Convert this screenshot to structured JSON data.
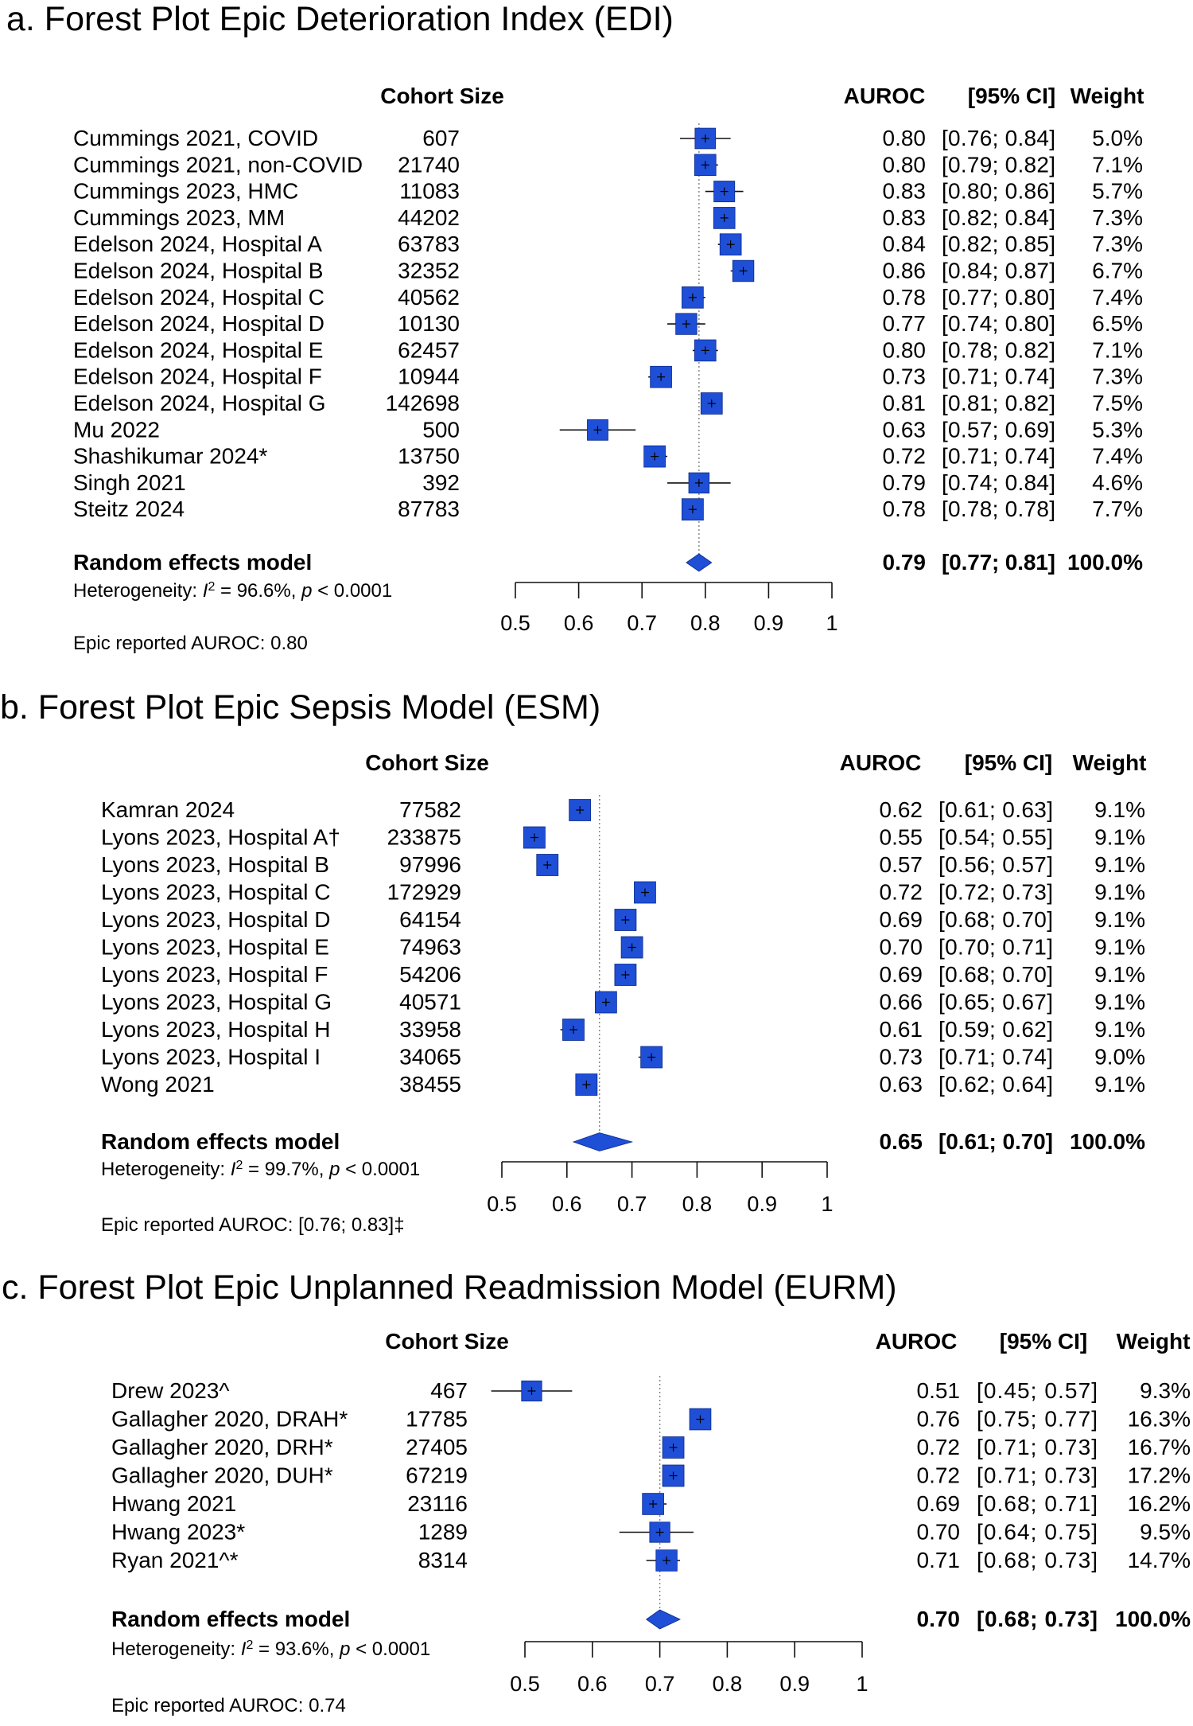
{
  "chart_data": [
    {
      "type": "forest",
      "title": "a.  Forest Plot Epic Deterioration Index (EDI)",
      "headers": {
        "cohort": "Cohort Size",
        "auroc": "AUROC",
        "ci": "[95% CI]",
        "weight": "Weight"
      },
      "xlim": [
        0.5,
        1
      ],
      "xticks": [
        "0.5",
        "0.6",
        "0.7",
        "0.8",
        "0.9",
        "1"
      ],
      "reference_line": 0.79,
      "studies": [
        {
          "study": "Cummings 2021, COVID",
          "n": "607",
          "auroc": "0.80",
          "ci": "[0.76; 0.84]",
          "weight": "5.0%",
          "est": 0.8,
          "lo": 0.76,
          "hi": 0.84,
          "w": 5.0
        },
        {
          "study": "Cummings 2021, non-COVID",
          "n": "21740",
          "auroc": "0.80",
          "ci": "[0.79; 0.82]",
          "weight": "7.1%",
          "est": 0.8,
          "lo": 0.79,
          "hi": 0.82,
          "w": 7.1
        },
        {
          "study": "Cummings 2023, HMC",
          "n": "11083",
          "auroc": "0.83",
          "ci": "[0.80; 0.86]",
          "weight": "5.7%",
          "est": 0.83,
          "lo": 0.8,
          "hi": 0.86,
          "w": 5.7
        },
        {
          "study": "Cummings 2023, MM",
          "n": "44202",
          "auroc": "0.83",
          "ci": "[0.82; 0.84]",
          "weight": "7.3%",
          "est": 0.83,
          "lo": 0.82,
          "hi": 0.84,
          "w": 7.3
        },
        {
          "study": "Edelson 2024, Hospital A",
          "n": "63783",
          "auroc": "0.84",
          "ci": "[0.82; 0.85]",
          "weight": "7.3%",
          "est": 0.84,
          "lo": 0.82,
          "hi": 0.85,
          "w": 7.3
        },
        {
          "study": "Edelson 2024, Hospital B",
          "n": "32352",
          "auroc": "0.86",
          "ci": "[0.84; 0.87]",
          "weight": "6.7%",
          "est": 0.86,
          "lo": 0.84,
          "hi": 0.87,
          "w": 6.7
        },
        {
          "study": "Edelson 2024, Hospital C",
          "n": "40562",
          "auroc": "0.78",
          "ci": "[0.77; 0.80]",
          "weight": "7.4%",
          "est": 0.78,
          "lo": 0.77,
          "hi": 0.8,
          "w": 7.4
        },
        {
          "study": "Edelson 2024, Hospital D",
          "n": "10130",
          "auroc": "0.77",
          "ci": "[0.74; 0.80]",
          "weight": "6.5%",
          "est": 0.77,
          "lo": 0.74,
          "hi": 0.8,
          "w": 6.5
        },
        {
          "study": "Edelson 2024, Hospital E",
          "n": "62457",
          "auroc": "0.80",
          "ci": "[0.78; 0.82]",
          "weight": "7.1%",
          "est": 0.8,
          "lo": 0.78,
          "hi": 0.82,
          "w": 7.1
        },
        {
          "study": "Edelson 2024, Hospital F",
          "n": "10944",
          "auroc": "0.73",
          "ci": "[0.71; 0.74]",
          "weight": "7.3%",
          "est": 0.73,
          "lo": 0.71,
          "hi": 0.74,
          "w": 7.3
        },
        {
          "study": "Edelson 2024, Hospital G",
          "n": "142698",
          "auroc": "0.81",
          "ci": "[0.81; 0.82]",
          "weight": "7.5%",
          "est": 0.81,
          "lo": 0.81,
          "hi": 0.82,
          "w": 7.5
        },
        {
          "study": "Mu 2022",
          "n": "500",
          "auroc": "0.63",
          "ci": "[0.57; 0.69]",
          "weight": "5.3%",
          "est": 0.63,
          "lo": 0.57,
          "hi": 0.69,
          "w": 5.3
        },
        {
          "study": "Shashikumar 2024*",
          "n": "13750",
          "auroc": "0.72",
          "ci": "[0.71; 0.74]",
          "weight": "7.4%",
          "est": 0.72,
          "lo": 0.71,
          "hi": 0.74,
          "w": 7.4
        },
        {
          "study": "Singh 2021",
          "n": "392",
          "auroc": "0.79",
          "ci": "[0.74; 0.84]",
          "weight": "4.6%",
          "est": 0.79,
          "lo": 0.74,
          "hi": 0.84,
          "w": 4.6
        },
        {
          "study": "Steitz 2024",
          "n": "87783",
          "auroc": "0.78",
          "ci": "[0.78; 0.78]",
          "weight": "7.7%",
          "est": 0.78,
          "lo": 0.78,
          "hi": 0.78,
          "w": 7.7
        }
      ],
      "summary": {
        "label": "Random effects model",
        "auroc": "0.79",
        "ci": "[0.77; 0.81]",
        "weight": "100.0%",
        "est": 0.79,
        "lo": 0.77,
        "hi": 0.81
      },
      "heterogeneity": {
        "prefix": "Heterogeneity: ",
        "i": "I",
        "sup": "2",
        "mid": " = 96.6%, ",
        "p": "p",
        "tail": " < 0.0001"
      },
      "note": "Epic reported AUROC: 0.80"
    },
    {
      "type": "forest",
      "title": "b.  Forest Plot Epic Sepsis Model (ESM)",
      "headers": {
        "cohort": "Cohort Size",
        "auroc": "AUROC",
        "ci": "[95% CI]",
        "weight": "Weight"
      },
      "xlim": [
        0.5,
        1
      ],
      "xticks": [
        "0.5",
        "0.6",
        "0.7",
        "0.8",
        "0.9",
        "1"
      ],
      "reference_line": 0.65,
      "studies": [
        {
          "study": "Kamran 2024",
          "n": "77582",
          "auroc": "0.62",
          "ci": "[0.61; 0.63]",
          "weight": "9.1%",
          "est": 0.62,
          "lo": 0.61,
          "hi": 0.63,
          "w": 9.1
        },
        {
          "study": "Lyons 2023, Hospital A†",
          "n": "233875",
          "auroc": "0.55",
          "ci": "[0.54; 0.55]",
          "weight": "9.1%",
          "est": 0.55,
          "lo": 0.54,
          "hi": 0.55,
          "w": 9.1
        },
        {
          "study": "Lyons 2023, Hospital B",
          "n": "97996",
          "auroc": "0.57",
          "ci": "[0.56; 0.57]",
          "weight": "9.1%",
          "est": 0.57,
          "lo": 0.56,
          "hi": 0.57,
          "w": 9.1
        },
        {
          "study": "Lyons 2023, Hospital C",
          "n": "172929",
          "auroc": "0.72",
          "ci": "[0.72; 0.73]",
          "weight": "9.1%",
          "est": 0.72,
          "lo": 0.72,
          "hi": 0.73,
          "w": 9.1
        },
        {
          "study": "Lyons 2023, Hospital D",
          "n": "64154",
          "auroc": "0.69",
          "ci": "[0.68; 0.70]",
          "weight": "9.1%",
          "est": 0.69,
          "lo": 0.68,
          "hi": 0.7,
          "w": 9.1
        },
        {
          "study": "Lyons 2023, Hospital E",
          "n": "74963",
          "auroc": "0.70",
          "ci": "[0.70; 0.71]",
          "weight": "9.1%",
          "est": 0.7,
          "lo": 0.7,
          "hi": 0.71,
          "w": 9.1
        },
        {
          "study": "Lyons 2023, Hospital F",
          "n": "54206",
          "auroc": "0.69",
          "ci": "[0.68; 0.70]",
          "weight": "9.1%",
          "est": 0.69,
          "lo": 0.68,
          "hi": 0.7,
          "w": 9.1
        },
        {
          "study": "Lyons 2023, Hospital G",
          "n": "40571",
          "auroc": "0.66",
          "ci": "[0.65; 0.67]",
          "weight": "9.1%",
          "est": 0.66,
          "lo": 0.65,
          "hi": 0.67,
          "w": 9.1
        },
        {
          "study": "Lyons 2023, Hospital H",
          "n": "33958",
          "auroc": "0.61",
          "ci": "[0.59; 0.62]",
          "weight": "9.1%",
          "est": 0.61,
          "lo": 0.59,
          "hi": 0.62,
          "w": 9.1
        },
        {
          "study": "Lyons 2023, Hospital I",
          "n": "34065",
          "auroc": "0.73",
          "ci": "[0.71; 0.74]",
          "weight": "9.0%",
          "est": 0.73,
          "lo": 0.71,
          "hi": 0.74,
          "w": 9.0
        },
        {
          "study": "Wong 2021",
          "n": "38455",
          "auroc": "0.63",
          "ci": "[0.62; 0.64]",
          "weight": "9.1%",
          "est": 0.63,
          "lo": 0.62,
          "hi": 0.64,
          "w": 9.1
        }
      ],
      "summary": {
        "label": "Random effects model",
        "auroc": "0.65",
        "ci": "[0.61; 0.70]",
        "weight": "100.0%",
        "est": 0.65,
        "lo": 0.61,
        "hi": 0.7
      },
      "heterogeneity": {
        "prefix": "Heterogeneity: ",
        "i": "I",
        "sup": "2",
        "mid": " = 99.7%, ",
        "p": "p",
        "tail": " < 0.0001"
      },
      "note": "Epic reported AUROC: [0.76; 0.83]‡"
    },
    {
      "type": "forest",
      "title": "c.  Forest Plot Epic Unplanned Readmission Model (EURM)",
      "headers": {
        "cohort": "Cohort Size",
        "auroc": "AUROC",
        "ci": "[95% CI]",
        "weight": "Weight"
      },
      "xlim": [
        0.5,
        1
      ],
      "xticks": [
        "0.5",
        "0.6",
        "0.7",
        "0.8",
        "0.9",
        "1"
      ],
      "reference_line": 0.7,
      "studies": [
        {
          "study": "Drew 2023^",
          "n": "467",
          "auroc": "0.51",
          "ci": "[0.45; 0.57]",
          "weight": "9.3%",
          "est": 0.51,
          "lo": 0.45,
          "hi": 0.57,
          "w": 9.3
        },
        {
          "study": "Gallagher 2020, DRAH*",
          "n": "17785",
          "auroc": "0.76",
          "ci": "[0.75; 0.77]",
          "weight": "16.3%",
          "est": 0.76,
          "lo": 0.75,
          "hi": 0.77,
          "w": 16.3
        },
        {
          "study": "Gallagher 2020, DRH*",
          "n": "27405",
          "auroc": "0.72",
          "ci": "[0.71; 0.73]",
          "weight": "16.7%",
          "est": 0.72,
          "lo": 0.71,
          "hi": 0.73,
          "w": 16.7
        },
        {
          "study": "Gallagher 2020, DUH*",
          "n": "67219",
          "auroc": "0.72",
          "ci": "[0.71; 0.73]",
          "weight": "17.2%",
          "est": 0.72,
          "lo": 0.71,
          "hi": 0.73,
          "w": 17.2
        },
        {
          "study": "Hwang 2021",
          "n": "23116",
          "auroc": "0.69",
          "ci": "[0.68; 0.71]",
          "weight": "16.2%",
          "est": 0.69,
          "lo": 0.68,
          "hi": 0.71,
          "w": 16.2
        },
        {
          "study": "Hwang 2023*",
          "n": "1289",
          "auroc": "0.70",
          "ci": "[0.64; 0.75]",
          "weight": "9.5%",
          "est": 0.7,
          "lo": 0.64,
          "hi": 0.75,
          "w": 9.5
        },
        {
          "study": "Ryan 2021^*",
          "n": "8314",
          "auroc": "0.71",
          "ci": "[0.68; 0.73]",
          "weight": "14.7%",
          "est": 0.71,
          "lo": 0.68,
          "hi": 0.73,
          "w": 14.7
        }
      ],
      "summary": {
        "label": "Random effects model",
        "auroc": "0.70",
        "ci": "[0.68; 0.73]",
        "weight": "100.0%",
        "est": 0.7,
        "lo": 0.68,
        "hi": 0.73
      },
      "heterogeneity": {
        "prefix": "Heterogeneity: ",
        "i": "I",
        "sup": "2",
        "mid": " = 93.6%, ",
        "p": "p",
        "tail": " < 0.0001"
      },
      "note": "Epic reported AUROC: 0.74"
    }
  ],
  "colors": {
    "box": "#1f4fd6",
    "box_edge": "#0a2a8a",
    "line": "#111111",
    "ref": "#888888"
  }
}
